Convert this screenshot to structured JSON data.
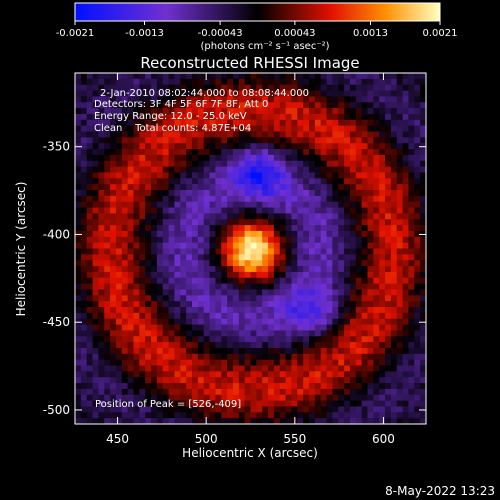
{
  "chart_data": {
    "type": "heatmap",
    "title": "Reconstructed RHESSI Image",
    "xlabel": "Heliocentric X (arcsec)",
    "ylabel": "Heliocentric Y (arcsec)",
    "xlim": [
      426,
      624
    ],
    "ylim": [
      -508,
      -308
    ],
    "xticks": [
      450,
      500,
      550,
      600
    ],
    "yticks": [
      -350,
      -400,
      -450,
      -500
    ],
    "colorbar": {
      "min": -0.0021,
      "max": 0.0021,
      "ticks": [
        "-0.0021",
        "-0.0013",
        "-0.00043",
        "0.00043",
        "0.0013",
        "0.0021"
      ],
      "tick_values": [
        -0.0021,
        -0.0013,
        -0.00043,
        0.00043,
        0.0013,
        0.0021
      ],
      "unit_label": "(photons cm⁻² s⁻¹ asec⁻²)"
    },
    "annotations": [
      "2-Jan-2010 08:02:44.000 to 08:08:44.000",
      "Detectors: 3F 4F 5F 6F 7F 8F, Att 0",
      "Energy Range: 12.0 - 25.0 keV",
      "Clean    Total counts: 4.87E+04"
    ],
    "peak_label": "Position of Peak = [526,-409]",
    "peak": [
      526,
      -409
    ],
    "features": [
      {
        "kind": "peak",
        "x": 526,
        "y": -409,
        "value": 0.0021
      },
      {
        "kind": "negative",
        "x": 530,
        "y": -365,
        "value": -0.0019
      },
      {
        "kind": "negative",
        "x": 560,
        "y": -445,
        "value": -0.0015
      }
    ],
    "footer_date": "8-May-2022 13:23"
  }
}
